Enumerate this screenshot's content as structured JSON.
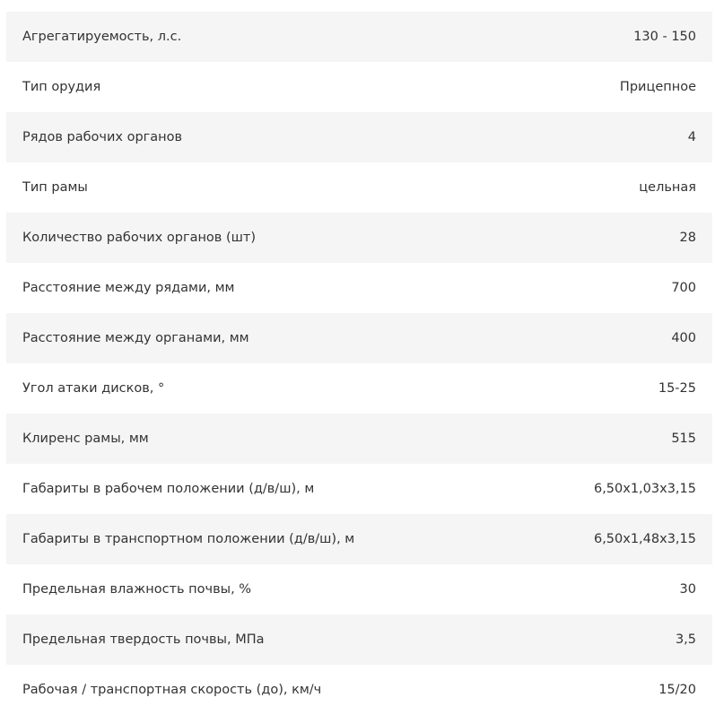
{
  "specs": [
    {
      "label": "Агрегатируемость, л.с.",
      "value": "130 - 150"
    },
    {
      "label": "Тип орудия",
      "value": "Прицепное"
    },
    {
      "label": "Рядов рабочих органов",
      "value": "4"
    },
    {
      "label": "Тип рамы",
      "value": "цельная"
    },
    {
      "label": "Количество рабочих органов (шт)",
      "value": "28"
    },
    {
      "label": "Расстояние между рядами, мм",
      "value": "700"
    },
    {
      "label": "Расстояние между органами, мм",
      "value": "400"
    },
    {
      "label": "Угол атаки дисков, °",
      "value": "15-25"
    },
    {
      "label": "Клиренс рамы, мм",
      "value": "515"
    },
    {
      "label": "Габариты в рабочем положении (д/в/ш), м",
      "value": "6,50x1,03x3,15"
    },
    {
      "label": "Габариты в транспортном положении (д/в/ш), м",
      "value": "6,50x1,48x3,15"
    },
    {
      "label": "Предельная влажность почвы, %",
      "value": "30"
    },
    {
      "label": "Предельная твердость почвы, МПа",
      "value": "3,5"
    },
    {
      "label": "Рабочая / транспортная скорость (до), км/ч",
      "value": "15/20"
    }
  ]
}
